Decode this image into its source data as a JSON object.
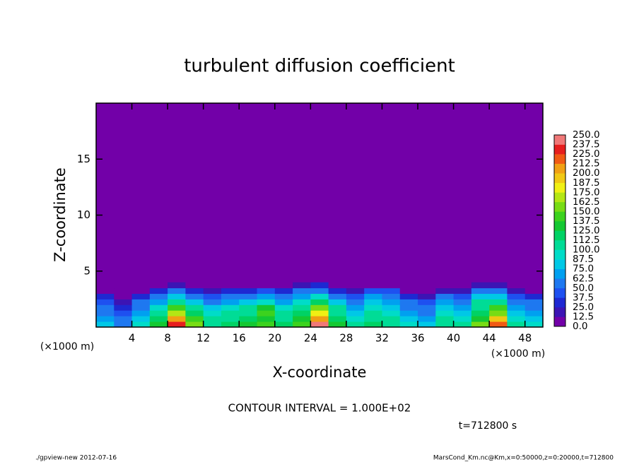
{
  "chart_data": {
    "type": "contour",
    "title": "turbulent diffusion coefficient",
    "xlabel": "X-coordinate",
    "ylabel": "Z-coordinate",
    "x_unit": "(×1000 m)",
    "xlim": [
      0,
      50
    ],
    "ylim": [
      0,
      20
    ],
    "xticks": [
      4,
      8,
      12,
      16,
      20,
      24,
      28,
      32,
      36,
      40,
      44,
      48
    ],
    "yticks": [
      5,
      10,
      15
    ],
    "x": [
      1,
      3,
      5,
      7,
      9,
      11,
      13,
      15,
      17,
      19,
      21,
      23,
      25,
      27,
      29,
      31,
      33,
      35,
      37,
      39,
      41,
      43,
      45,
      47,
      49
    ],
    "y": [
      0.25,
      0.75,
      1.25,
      1.75,
      2.25,
      2.75,
      3.25,
      3.75
    ],
    "z": [
      [
        80,
        60,
        90,
        130,
        230,
        160,
        110,
        120,
        130,
        140,
        120,
        140,
        240,
        130,
        100,
        120,
        110,
        90,
        80,
        110,
        100,
        150,
        220,
        100,
        90
      ],
      [
        70,
        50,
        80,
        120,
        200,
        140,
        100,
        110,
        120,
        130,
        110,
        130,
        210,
        120,
        90,
        110,
        100,
        80,
        70,
        100,
        90,
        130,
        190,
        90,
        80
      ],
      [
        60,
        40,
        70,
        110,
        170,
        120,
        90,
        100,
        110,
        140,
        100,
        120,
        180,
        110,
        80,
        100,
        90,
        70,
        60,
        90,
        80,
        120,
        160,
        80,
        70
      ],
      [
        50,
        30,
        60,
        90,
        140,
        100,
        80,
        90,
        100,
        130,
        90,
        110,
        150,
        100,
        70,
        90,
        80,
        60,
        50,
        80,
        70,
        110,
        140,
        70,
        60
      ],
      [
        40,
        20,
        50,
        70,
        110,
        80,
        60,
        70,
        80,
        90,
        70,
        90,
        120,
        80,
        60,
        80,
        70,
        50,
        40,
        70,
        60,
        100,
        110,
        60,
        50
      ],
      [
        30,
        10,
        30,
        50,
        80,
        60,
        40,
        50,
        60,
        70,
        50,
        70,
        90,
        60,
        40,
        70,
        60,
        30,
        20,
        50,
        40,
        80,
        80,
        40,
        30
      ],
      [
        10,
        0,
        10,
        30,
        50,
        30,
        20,
        30,
        30,
        40,
        30,
        50,
        60,
        30,
        20,
        40,
        40,
        10,
        5,
        20,
        20,
        50,
        50,
        20,
        10
      ],
      [
        0,
        0,
        0,
        5,
        20,
        10,
        5,
        5,
        5,
        10,
        5,
        20,
        30,
        10,
        5,
        10,
        10,
        0,
        0,
        5,
        0,
        20,
        20,
        5,
        0
      ]
    ],
    "levels": [
      {
        "value": 0,
        "label": "0.0"
      },
      12.5,
      {
        "value": 25,
        "label": "25.0"
      },
      37.5,
      {
        "value": 50,
        "label": "50.0"
      },
      62.5,
      {
        "value": 75,
        "label": "75.0"
      },
      87.5,
      {
        "value": 100,
        "label": "100.0"
      },
      112.5,
      {
        "value": 125,
        "label": "125.0"
      },
      137.5,
      {
        "value": 150,
        "label": "150.0"
      },
      162.5,
      {
        "value": 175,
        "label": "175.0"
      },
      187.5,
      {
        "value": 200,
        "label": "200.0"
      },
      212.5,
      {
        "value": 225,
        "label": "225.0"
      },
      237.5,
      {
        "value": 250,
        "label": "250.0"
      }
    ],
    "colors": [
      "#7200a8",
      "#3c14b4",
      "#1e28d2",
      "#1e50f0",
      "#1e78f0",
      "#00a0f0",
      "#00c8e6",
      "#00dcc8",
      "#00dc96",
      "#00d264",
      "#14c832",
      "#3cd21e",
      "#78dc14",
      "#b4e614",
      "#f0f014",
      "#f0c814",
      "#f0a014",
      "#f05a14",
      "#e61e1e",
      "#f07878"
    ],
    "contour_interval": "CONTOUR INTERVAL = 1.000E+02",
    "time_label": "t=712800 s"
  },
  "footer_left": "./gpview-new  2012-07-16",
  "footer_right": "MarsCond_Km.nc@Km,x=0:50000,z=0:20000,t=712800"
}
